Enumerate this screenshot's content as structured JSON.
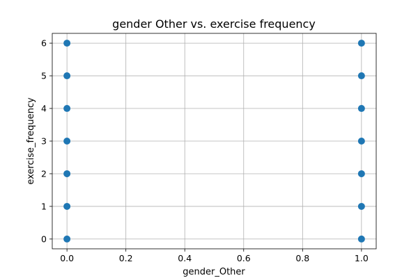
{
  "chart_data": {
    "type": "scatter",
    "title": "gender Other vs. exercise frequency",
    "xlabel": "gender_Other",
    "ylabel": "exercise_frequency",
    "xlim": [
      -0.05,
      1.05
    ],
    "ylim": [
      -0.3,
      6.3
    ],
    "grid": true,
    "xticks": [
      0.0,
      0.2,
      0.4,
      0.6,
      0.8,
      1.0
    ],
    "xtick_labels": [
      "0.0",
      "0.2",
      "0.4",
      "0.6",
      "0.8",
      "1.0"
    ],
    "yticks": [
      0,
      1,
      2,
      3,
      4,
      5,
      6
    ],
    "ytick_labels": [
      "0",
      "1",
      "2",
      "3",
      "4",
      "5",
      "6"
    ],
    "point_color": "#1f77b4",
    "series": [
      {
        "points": [
          [
            0,
            0
          ],
          [
            0,
            1
          ],
          [
            0,
            2
          ],
          [
            0,
            3
          ],
          [
            0,
            4
          ],
          [
            0,
            5
          ],
          [
            0,
            6
          ],
          [
            1,
            0
          ],
          [
            1,
            1
          ],
          [
            1,
            2
          ],
          [
            1,
            3
          ],
          [
            1,
            4
          ],
          [
            1,
            5
          ],
          [
            1,
            6
          ]
        ]
      }
    ]
  }
}
